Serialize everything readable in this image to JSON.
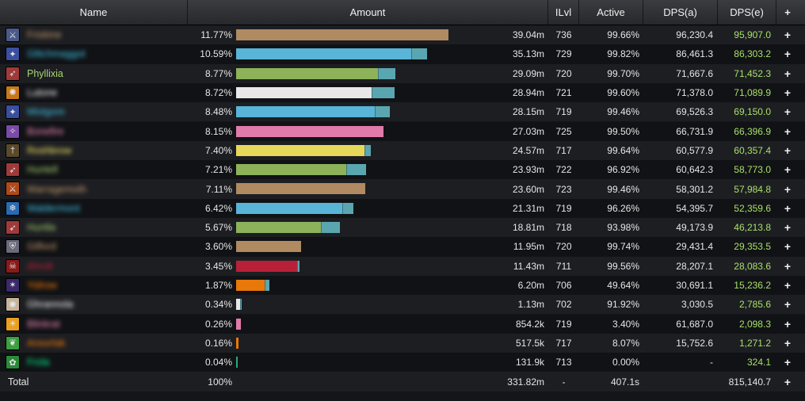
{
  "header": {
    "name": "Name",
    "amount": "Amount",
    "ilvl": "ILvl",
    "active": "Active",
    "dps_a": "DPS(a)",
    "dps_e": "DPS(e)",
    "expand": "+"
  },
  "colors": {
    "row_odd": "#1d1e22",
    "row_even": "#111215",
    "dps_e_text": "#a7e06a",
    "extension_bar": "#5aa6b0"
  },
  "rows": [
    {
      "name": "Friskine",
      "blurred": true,
      "name_color": "#c79c6e",
      "icon": "warrior-icon",
      "icon_bg": "#4a5a8a",
      "pct": "11.77%",
      "amount": "39.04m",
      "ilvl": "736",
      "active": "99.66%",
      "dps_a": "96,230.4",
      "dps_e": "95,907.0",
      "bar_color": "#b08a60",
      "bar_frac": 0.993,
      "ext_frac": 0.0
    },
    {
      "name": "Glitchmaggot",
      "blurred": true,
      "name_color": "#3fc7eb",
      "icon": "mage-icon",
      "icon_bg": "#3a4fa0",
      "pct": "10.59%",
      "amount": "35.13m",
      "ilvl": "729",
      "active": "99.82%",
      "dps_a": "86,461.3",
      "dps_e": "86,303.2",
      "bar_color": "#58b5d8",
      "bar_frac": 0.819,
      "ext_frac": 0.074
    },
    {
      "name": "Phyllixia",
      "blurred": false,
      "name_color": "#abd473",
      "icon": "hunter-icon",
      "icon_bg": "#a03a3a",
      "pct": "8.77%",
      "amount": "29.09m",
      "ilvl": "720",
      "active": "99.70%",
      "dps_a": "71,667.6",
      "dps_e": "71,452.3",
      "bar_color": "#8db25a",
      "bar_frac": 0.663,
      "ext_frac": 0.081
    },
    {
      "name": "Lutone",
      "blurred": true,
      "name_color": "#ffffff",
      "icon": "priest-icon",
      "icon_bg": "#c8781a",
      "pct": "8.72%",
      "amount": "28.94m",
      "ilvl": "721",
      "active": "99.60%",
      "dps_a": "71,378.0",
      "dps_e": "71,089.9",
      "bar_color": "#e8e8e8",
      "bar_frac": 0.633,
      "ext_frac": 0.107
    },
    {
      "name": "Mistgore",
      "blurred": true,
      "name_color": "#3fc7eb",
      "icon": "mage-icon",
      "icon_bg": "#3a4fa0",
      "pct": "8.48%",
      "amount": "28.15m",
      "ilvl": "719",
      "active": "99.46%",
      "dps_a": "69,526.3",
      "dps_e": "69,150.0",
      "bar_color": "#58b5d8",
      "bar_frac": 0.648,
      "ext_frac": 0.07
    },
    {
      "name": "Bonefire",
      "blurred": true,
      "name_color": "#f58cba",
      "icon": "paladin-icon",
      "icon_bg": "#7a4aa8",
      "pct": "8.15%",
      "amount": "27.03m",
      "ilvl": "725",
      "active": "99.50%",
      "dps_a": "66,731.9",
      "dps_e": "66,396.9",
      "bar_color": "#e07aaa",
      "bar_frac": 0.689,
      "ext_frac": 0.0
    },
    {
      "name": "Roshbrow",
      "blurred": true,
      "name_color": "#fff569",
      "icon": "rogue-icon",
      "icon_bg": "#5a4a2a",
      "pct": "7.40%",
      "amount": "24.57m",
      "ilvl": "717",
      "active": "99.64%",
      "dps_a": "60,577.9",
      "dps_e": "60,357.4",
      "bar_color": "#e6d85a",
      "bar_frac": 0.599,
      "ext_frac": 0.03
    },
    {
      "name": "Huntell",
      "blurred": true,
      "name_color": "#abd473",
      "icon": "hunter-icon",
      "icon_bg": "#a03a3a",
      "pct": "7.21%",
      "amount": "23.93m",
      "ilvl": "722",
      "active": "96.92%",
      "dps_a": "60,642.3",
      "dps_e": "58,773.0",
      "bar_color": "#8db25a",
      "bar_frac": 0.514,
      "ext_frac": 0.093
    },
    {
      "name": "Warragemoth",
      "blurred": true,
      "name_color": "#c79c6e",
      "icon": "warrior-icon",
      "icon_bg": "#b04a1a",
      "pct": "7.11%",
      "amount": "23.60m",
      "ilvl": "723",
      "active": "99.46%",
      "dps_a": "58,301.2",
      "dps_e": "57,984.8",
      "bar_color": "#b08a60",
      "bar_frac": 0.604,
      "ext_frac": 0.0
    },
    {
      "name": "Waldermont",
      "blurred": true,
      "name_color": "#3fc7eb",
      "icon": "frost-icon",
      "icon_bg": "#2a6ab0",
      "pct": "6.42%",
      "amount": "21.31m",
      "ilvl": "719",
      "active": "96.26%",
      "dps_a": "54,395.7",
      "dps_e": "52,359.6",
      "bar_color": "#58b5d8",
      "bar_frac": 0.496,
      "ext_frac": 0.052
    },
    {
      "name": "Huntla",
      "blurred": true,
      "name_color": "#abd473",
      "icon": "hunter-icon",
      "icon_bg": "#a03a3a",
      "pct": "5.67%",
      "amount": "18.81m",
      "ilvl": "718",
      "active": "93.98%",
      "dps_a": "49,173.9",
      "dps_e": "46,213.8",
      "bar_color": "#8db25a",
      "bar_frac": 0.396,
      "ext_frac": 0.089
    },
    {
      "name": "Gilford",
      "blurred": true,
      "name_color": "#c79c6e",
      "icon": "shield-icon",
      "icon_bg": "#6a6a7a",
      "pct": "3.60%",
      "amount": "11.95m",
      "ilvl": "720",
      "active": "99.74%",
      "dps_a": "29,431.4",
      "dps_e": "29,353.5",
      "bar_color": "#b08a60",
      "bar_frac": 0.304,
      "ext_frac": 0.0
    },
    {
      "name": "Ahrolt",
      "blurred": true,
      "name_color": "#c41f3b",
      "icon": "skull-icon",
      "icon_bg": "#8a1a1a",
      "pct": "3.45%",
      "amount": "11.43m",
      "ilvl": "711",
      "active": "99.56%",
      "dps_a": "28,207.1",
      "dps_e": "28,083.6",
      "bar_color": "#b8203a",
      "bar_frac": 0.285,
      "ext_frac": 0.011
    },
    {
      "name": "Yidrow",
      "blurred": true,
      "name_color": "#ff7d0a",
      "icon": "spark-icon",
      "icon_bg": "#3a2a6a",
      "pct": "1.87%",
      "amount": "6.20m",
      "ilvl": "706",
      "active": "49.64%",
      "dps_a": "30,691.1",
      "dps_e": "15,236.2",
      "bar_color": "#e8780a",
      "bar_frac": 0.133,
      "ext_frac": 0.022
    },
    {
      "name": "Ghrannola",
      "blurred": true,
      "name_color": "#ffffff",
      "icon": "priest-icon",
      "icon_bg": "#c8b49a",
      "pct": "0.34%",
      "amount": "1.13m",
      "ilvl": "702",
      "active": "91.92%",
      "dps_a": "3,030.5",
      "dps_e": "2,785.6",
      "bar_color": "#e8e8e8",
      "bar_frac": 0.019,
      "ext_frac": 0.007
    },
    {
      "name": "Blinkrat",
      "blurred": true,
      "name_color": "#f58cba",
      "icon": "holy-icon",
      "icon_bg": "#e8a020",
      "pct": "0.26%",
      "amount": "854.2k",
      "ilvl": "719",
      "active": "3.40%",
      "dps_a": "61,687.0",
      "dps_e": "2,098.3",
      "bar_color": "#e07aaa",
      "bar_frac": 0.022,
      "ext_frac": 0.0
    },
    {
      "name": "Ansorlak",
      "blurred": true,
      "name_color": "#ff7d0a",
      "icon": "leaf-icon",
      "icon_bg": "#3aa040",
      "pct": "0.16%",
      "amount": "517.5k",
      "ilvl": "717",
      "active": "8.07%",
      "dps_a": "15,752.6",
      "dps_e": "1,271.2",
      "bar_color": "#e8780a",
      "bar_frac": 0.011,
      "ext_frac": 0.0
    },
    {
      "name": "Frola",
      "blurred": true,
      "name_color": "#00ff96",
      "icon": "nature-icon",
      "icon_bg": "#2a8a3a",
      "pct": "0.04%",
      "amount": "131.9k",
      "ilvl": "713",
      "active": "0.00%",
      "dps_a": "-",
      "dps_e": "324.1",
      "bar_color": "#2aa87a",
      "bar_frac": 0.004,
      "ext_frac": 0.0
    }
  ],
  "total": {
    "label": "Total",
    "pct": "100%",
    "amount": "331.82m",
    "ilvl": "-",
    "active": "407.1s",
    "dps_a": "",
    "dps_e": "815,140.7"
  }
}
